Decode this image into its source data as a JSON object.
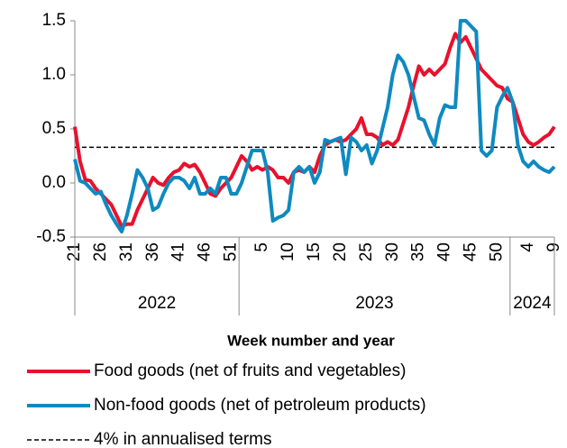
{
  "chart_data": {
    "type": "line",
    "x_label": "Week number and year",
    "categories": [
      "21",
      null,
      null,
      null,
      null,
      "26",
      null,
      null,
      null,
      null,
      "31",
      null,
      null,
      null,
      null,
      "36",
      null,
      null,
      null,
      null,
      "41",
      null,
      null,
      null,
      null,
      "46",
      null,
      null,
      null,
      null,
      "51",
      null,
      null,
      null,
      null,
      null,
      "5",
      null,
      null,
      null,
      null,
      "10",
      null,
      null,
      null,
      null,
      "15",
      null,
      null,
      null,
      null,
      "20",
      null,
      null,
      null,
      null,
      "25",
      null,
      null,
      null,
      null,
      "30",
      null,
      null,
      null,
      null,
      "35",
      null,
      null,
      null,
      null,
      "40",
      null,
      null,
      null,
      null,
      "45",
      null,
      null,
      null,
      null,
      "50",
      null,
      null,
      null,
      null,
      null,
      "4",
      null,
      null,
      null,
      null,
      "9"
    ],
    "year_groups": [
      {
        "label": "2022",
        "span": 32
      },
      {
        "label": "2023",
        "span": 52
      },
      {
        "label": "2024",
        "span": 9
      }
    ],
    "series": [
      {
        "name": "Food goods (net of fruits and vegetables)",
        "color": "#e8112d",
        "values": [
          0.52,
          0.2,
          0.03,
          0.02,
          -0.05,
          -0.1,
          -0.15,
          -0.2,
          -0.3,
          -0.4,
          -0.38,
          -0.38,
          -0.25,
          -0.15,
          -0.05,
          0.05,
          0.0,
          -0.02,
          0.05,
          0.1,
          0.12,
          0.18,
          0.15,
          0.17,
          0.1,
          0.0,
          -0.1,
          -0.12,
          -0.05,
          0.0,
          0.05,
          0.15,
          0.25,
          0.2,
          0.12,
          0.15,
          0.12,
          0.15,
          0.12,
          0.05,
          0.05,
          0.0,
          0.1,
          0.12,
          0.1,
          0.15,
          0.1,
          0.25,
          0.35,
          0.38,
          0.4,
          0.38,
          0.4,
          0.45,
          0.5,
          0.6,
          0.45,
          0.45,
          0.42,
          0.35,
          0.38,
          0.35,
          0.4,
          0.55,
          0.7,
          0.9,
          1.08,
          1.0,
          1.05,
          1.0,
          1.05,
          1.1,
          1.25,
          1.38,
          1.3,
          1.35,
          1.25,
          1.15,
          1.05,
          1.0,
          0.95,
          0.9,
          0.88,
          0.78,
          0.75,
          0.6,
          0.45,
          0.38,
          0.35,
          0.38,
          0.42,
          0.45,
          0.52
        ]
      },
      {
        "name": "Non-food goods (net of petroleum products)",
        "color": "#0e8ac0",
        "values": [
          0.22,
          0.02,
          0.0,
          -0.05,
          -0.1,
          -0.08,
          -0.2,
          -0.3,
          -0.38,
          -0.45,
          -0.3,
          -0.1,
          0.12,
          0.05,
          -0.05,
          -0.25,
          -0.22,
          -0.1,
          0.0,
          0.05,
          0.05,
          0.02,
          -0.05,
          0.05,
          -0.1,
          -0.1,
          -0.05,
          -0.1,
          0.05,
          0.05,
          -0.1,
          -0.1,
          0.0,
          0.15,
          0.3,
          0.3,
          0.3,
          0.1,
          -0.35,
          -0.32,
          -0.3,
          -0.25,
          0.1,
          0.15,
          0.1,
          0.15,
          0.0,
          0.1,
          0.4,
          0.38,
          0.4,
          0.42,
          0.08,
          0.42,
          0.38,
          0.3,
          0.35,
          0.18,
          0.3,
          0.5,
          0.7,
          1.0,
          1.18,
          1.12,
          1.0,
          0.8,
          0.6,
          0.58,
          0.45,
          0.35,
          0.6,
          0.72,
          0.7,
          0.7,
          1.5,
          1.5,
          1.45,
          1.4,
          0.3,
          0.25,
          0.3,
          0.7,
          0.8,
          0.88,
          0.75,
          0.35,
          0.2,
          0.15,
          0.2,
          0.15,
          0.12,
          0.1,
          0.15
        ]
      }
    ],
    "reference_line": {
      "value": 0.33,
      "label": "4% in annualised terms",
      "color": "#000000"
    },
    "ylim": [
      -0.5,
      1.5
    ],
    "yticks": [
      -0.5,
      {
        "value": 0,
        "label": "0.0"
      },
      0.5,
      {
        "value": 1,
        "label": "1.0"
      },
      1.5
    ],
    "grid": false
  }
}
